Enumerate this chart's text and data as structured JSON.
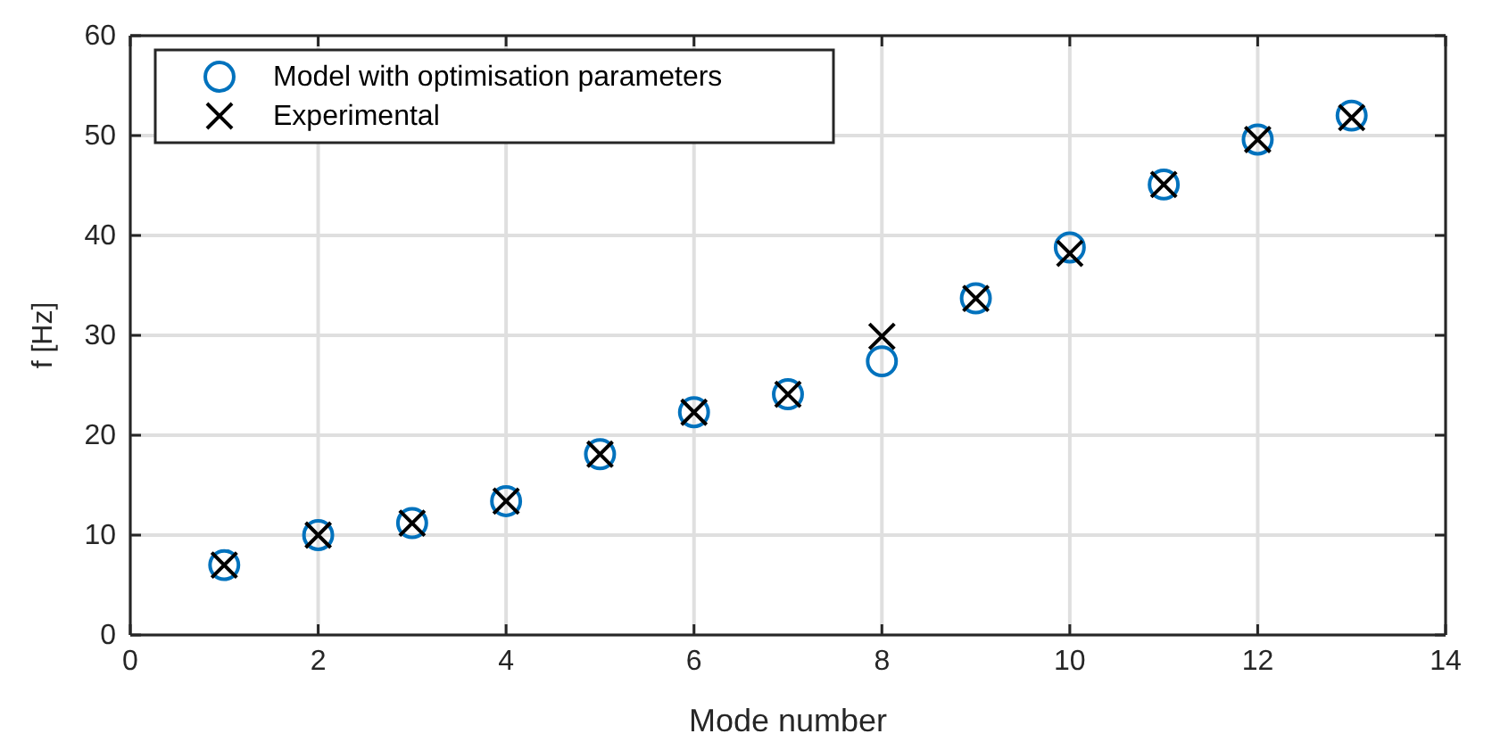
{
  "chart_data": {
    "type": "scatter",
    "xlabel": "Mode number",
    "ylabel": "f [Hz]",
    "x": [
      1,
      2,
      3,
      4,
      5,
      6,
      7,
      8,
      9,
      10,
      11,
      12,
      13
    ],
    "series": [
      {
        "name": "Model with optimisation parameters",
        "color": "#0072bd",
        "marker": "circle",
        "values": [
          7.0,
          10.0,
          11.2,
          13.4,
          18.1,
          22.3,
          24.1,
          27.4,
          33.7,
          38.8,
          45.1,
          49.6,
          52.0
        ]
      },
      {
        "name": "Experimental",
        "color": "#000000",
        "marker": "cross",
        "values": [
          7.0,
          10.0,
          11.2,
          13.4,
          18.1,
          22.3,
          24.1,
          29.9,
          33.7,
          38.2,
          45.1,
          49.6,
          51.8
        ]
      }
    ],
    "xlim": [
      0,
      14
    ],
    "xticks": [
      0,
      2,
      4,
      6,
      8,
      10,
      12,
      14
    ],
    "ylim": [
      0,
      60
    ],
    "yticks": [
      0,
      10,
      20,
      30,
      40,
      50,
      60
    ],
    "grid": true,
    "legend": "top left"
  }
}
